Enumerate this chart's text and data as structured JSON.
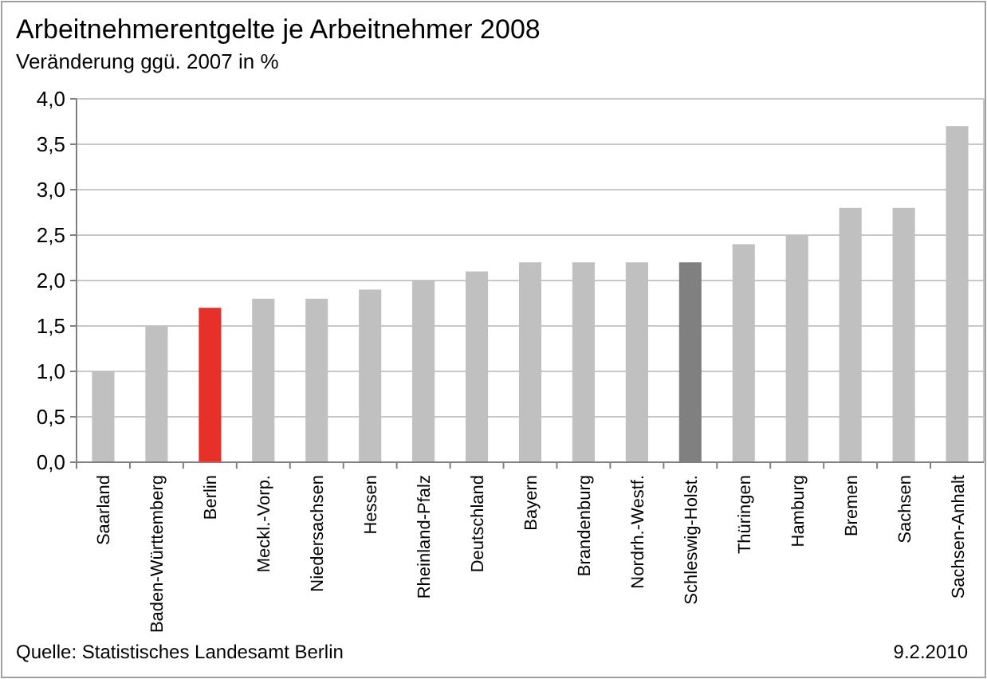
{
  "chart_data": {
    "type": "bar",
    "title": "Arbeitnehmerentgelte je Arbeitnehmer 2008",
    "subtitle": "Veränderung ggü. 2007 in %",
    "categories": [
      "Saarland",
      "Baden-Württemberg",
      "Berlin",
      "Meckl.-Vorp.",
      "Niedersachsen",
      "Hessen",
      "Rheinland-Pfalz",
      "Deutschland",
      "Bayern",
      "Brandenburg",
      "Nordrh.-Westf.",
      "Schleswig-Holst.",
      "Thüringen",
      "Hamburg",
      "Bremen",
      "Sachsen",
      "Sachsen-Anhalt"
    ],
    "values": [
      1.0,
      1.5,
      1.7,
      1.8,
      1.8,
      1.9,
      2.0,
      2.1,
      2.2,
      2.2,
      2.2,
      2.2,
      2.4,
      2.5,
      2.8,
      2.8,
      3.7
    ],
    "colors": [
      "#c0c0c0",
      "#c0c0c0",
      "#e8302a",
      "#c0c0c0",
      "#c0c0c0",
      "#c0c0c0",
      "#c0c0c0",
      "#c0c0c0",
      "#c0c0c0",
      "#c0c0c0",
      "#c0c0c0",
      "#808080",
      "#c0c0c0",
      "#c0c0c0",
      "#c0c0c0",
      "#c0c0c0",
      "#c0c0c0"
    ],
    "ylim": [
      0,
      4
    ],
    "yticks": [
      {
        "value": 0,
        "label": "0,0"
      },
      {
        "value": 0.5,
        "label": "0,5"
      },
      {
        "value": 1,
        "label": "1,0"
      },
      {
        "value": 1.5,
        "label": "1,5"
      },
      {
        "value": 2,
        "label": "2,0"
      },
      {
        "value": 2.5,
        "label": "2,5"
      },
      {
        "value": 3,
        "label": "3,0"
      },
      {
        "value": 3.5,
        "label": "3,5"
      },
      {
        "value": 4,
        "label": "4,0"
      }
    ],
    "grid": "y",
    "annotations": [
      "Quelle: Statistisches Landesamt Berlin",
      "9.2.2010"
    ]
  }
}
